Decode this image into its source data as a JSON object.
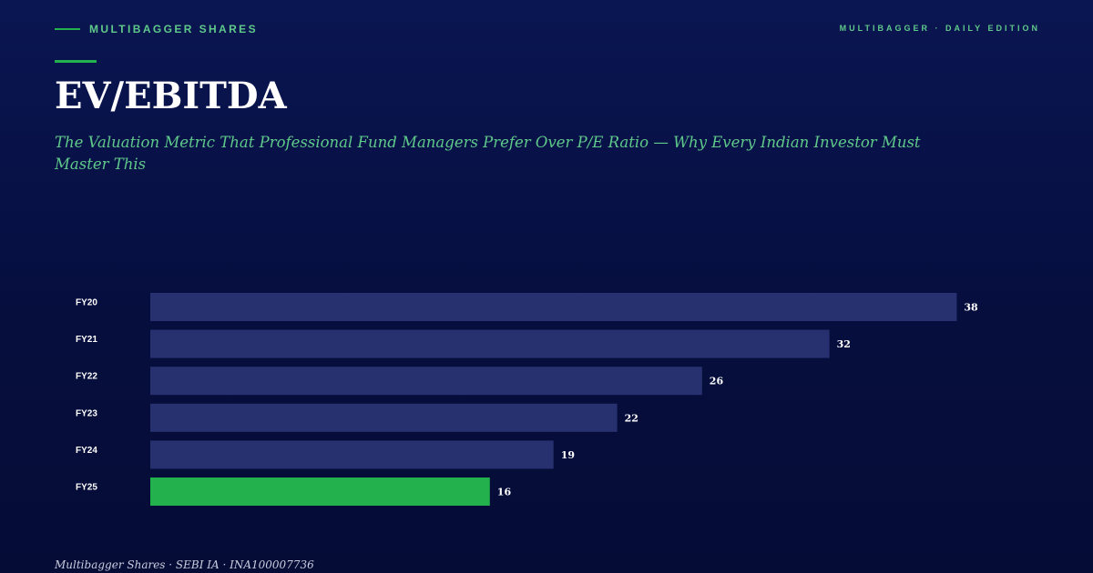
{
  "header": {
    "brand": "MULTIBAGGER SHARES",
    "edition": "MULTIBAGGER · DAILY EDITION"
  },
  "title": "EV/EBITDA",
  "subtitle": "The Valuation Metric That Professional Fund Managers Prefer Over P/E Ratio — Why Every Indian Investor Must Master This",
  "footer": "Multibagger Shares · SEBI IA · INA100007736",
  "colors": {
    "bar": "#283170",
    "highlight": "#22b14c",
    "label": "#ffffff"
  },
  "chart_data": {
    "type": "bar",
    "orientation": "horizontal",
    "categories": [
      "FY20",
      "FY21",
      "FY22",
      "FY23",
      "FY24",
      "FY25"
    ],
    "values": [
      38,
      32,
      26,
      22,
      19,
      16
    ],
    "highlight": "FY25",
    "title": "",
    "xlabel": "",
    "ylabel": "",
    "grid": false
  }
}
